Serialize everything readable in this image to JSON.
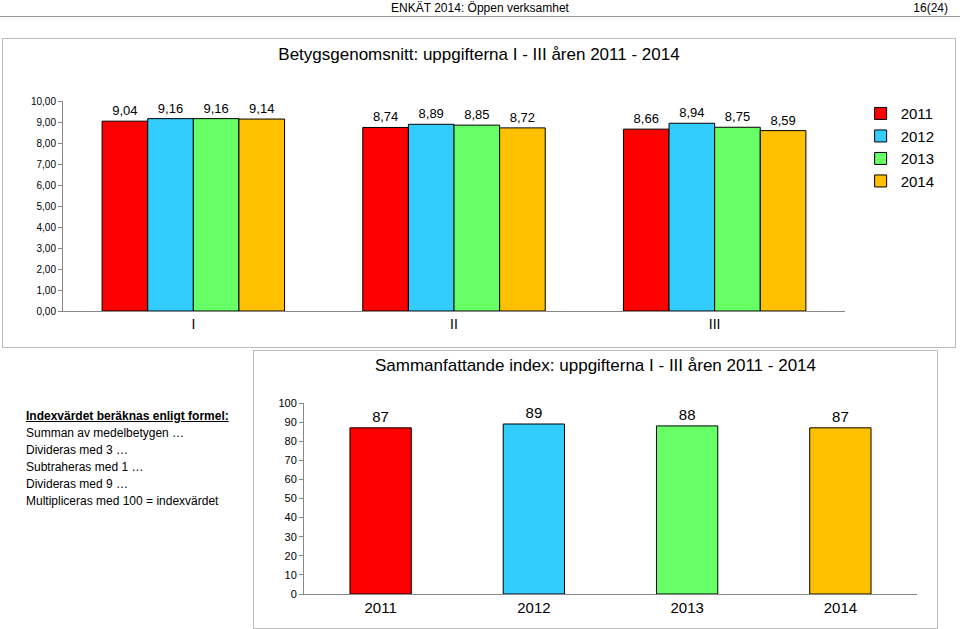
{
  "header": {
    "title": "ENKÄT 2014: Öppen verksamhet",
    "page": "16(24)"
  },
  "chart_data": [
    {
      "type": "bar",
      "title": "Betygsgenomsnitt: uppgifterna I - III åren 2011 - 2014",
      "categories": [
        "I",
        "II",
        "III"
      ],
      "series": [
        {
          "name": "2011",
          "color": "#ff0000",
          "values": [
            9.04,
            8.74,
            8.66
          ],
          "value_labels": [
            "9,04",
            "8,74",
            "8,66"
          ]
        },
        {
          "name": "2012",
          "color": "#33ccff",
          "values": [
            9.16,
            8.89,
            8.94
          ],
          "value_labels": [
            "9,16",
            "8,89",
            "8,94"
          ]
        },
        {
          "name": "2013",
          "color": "#66ff66",
          "values": [
            9.16,
            8.85,
            8.75
          ],
          "value_labels": [
            "9,16",
            "8,85",
            "8,75"
          ]
        },
        {
          "name": "2014",
          "color": "#ffc000",
          "values": [
            9.14,
            8.72,
            8.59
          ],
          "value_labels": [
            "9,14",
            "8,72",
            "8,59"
          ]
        }
      ],
      "ylim": [
        0,
        10
      ],
      "yticks": [
        {
          "value": 0,
          "label": "0,00"
        },
        {
          "value": 1,
          "label": "1,00"
        },
        {
          "value": 2,
          "label": "2,00"
        },
        {
          "value": 3,
          "label": "3,00"
        },
        {
          "value": 4,
          "label": "4,00"
        },
        {
          "value": 5,
          "label": "5,00"
        },
        {
          "value": 6,
          "label": "6,00"
        },
        {
          "value": 7,
          "label": "7,00"
        },
        {
          "value": 8,
          "label": "8,00"
        },
        {
          "value": 9,
          "label": "9,00"
        },
        {
          "value": 10,
          "label": "10,00"
        }
      ],
      "grid": false,
      "legend": "right",
      "data_labels": true
    },
    {
      "type": "bar",
      "title": "Sammanfattande index: uppgifterna I - III åren 2011 - 2014",
      "categories": [
        "2011",
        "2012",
        "2013",
        "2014"
      ],
      "values": [
        87,
        89,
        88,
        87
      ],
      "colors": [
        "#ff0000",
        "#33ccff",
        "#66ff66",
        "#ffc000"
      ],
      "ylim": [
        0,
        100
      ],
      "yticks": [
        0,
        10,
        20,
        30,
        40,
        50,
        60,
        70,
        80,
        90,
        100
      ],
      "grid": false,
      "data_labels": true
    }
  ],
  "formula": {
    "title": "Indexvärdet beräknas enligt formel:",
    "lines": [
      "Summan av medelbetygen …",
      "Divideras med 3 …",
      "Subtraheras med 1 …",
      "Divideras med 9 …",
      "Multipliceras med 100 = indexvärdet"
    ]
  }
}
